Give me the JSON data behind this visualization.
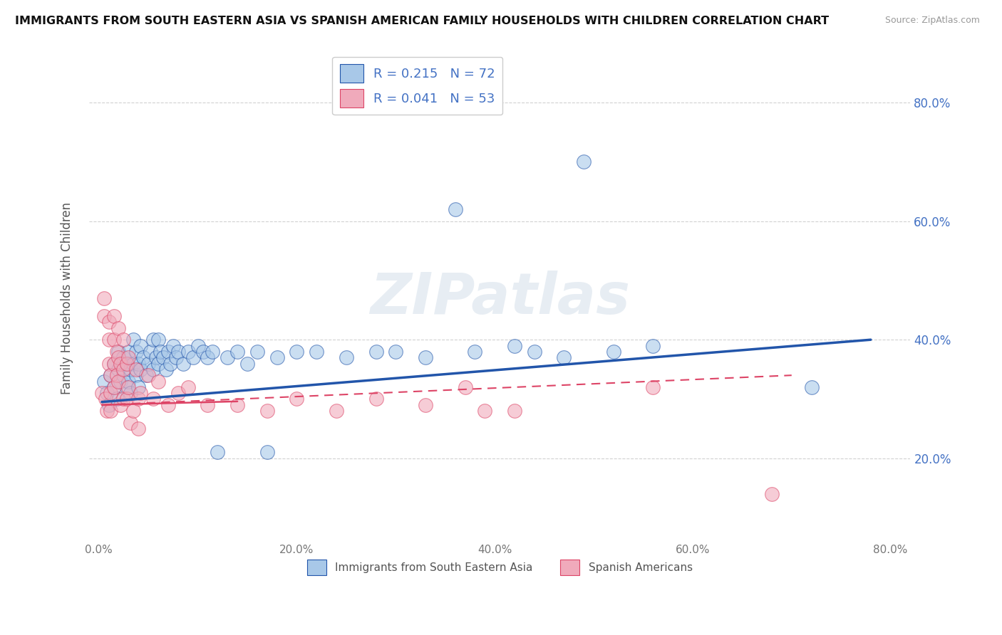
{
  "title": "IMMIGRANTS FROM SOUTH EASTERN ASIA VS SPANISH AMERICAN FAMILY HOUSEHOLDS WITH CHILDREN CORRELATION CHART",
  "source": "Source: ZipAtlas.com",
  "ylabel": "Family Households with Children",
  "xlim": [
    -0.01,
    0.82
  ],
  "ylim": [
    0.06,
    0.88
  ],
  "ytick_labels": [
    "20.0%",
    "40.0%",
    "60.0%",
    "80.0%"
  ],
  "ytick_values": [
    0.2,
    0.4,
    0.6,
    0.8
  ],
  "xtick_labels": [
    "0.0%",
    "20.0%",
    "40.0%",
    "60.0%",
    "80.0%"
  ],
  "xtick_values": [
    0.0,
    0.2,
    0.4,
    0.6,
    0.8
  ],
  "blue_R": 0.215,
  "blue_N": 72,
  "pink_R": 0.041,
  "pink_N": 53,
  "blue_color": "#a8c8e8",
  "blue_line_color": "#2255aa",
  "pink_color": "#f0aabb",
  "pink_line_color": "#dd4466",
  "pink_dashed_color": "#dd7788",
  "watermark": "ZIPatlas",
  "legend_label_blue": "Immigrants from South Eastern Asia",
  "legend_label_pink": "Spanish Americans",
  "blue_scatter_x": [
    0.005,
    0.008,
    0.01,
    0.012,
    0.015,
    0.015,
    0.018,
    0.02,
    0.02,
    0.022,
    0.025,
    0.025,
    0.028,
    0.028,
    0.03,
    0.03,
    0.032,
    0.032,
    0.035,
    0.035,
    0.038,
    0.038,
    0.04,
    0.04,
    0.042,
    0.042,
    0.045,
    0.048,
    0.05,
    0.052,
    0.055,
    0.055,
    0.058,
    0.06,
    0.06,
    0.062,
    0.065,
    0.068,
    0.07,
    0.072,
    0.075,
    0.078,
    0.08,
    0.085,
    0.09,
    0.095,
    0.1,
    0.105,
    0.11,
    0.115,
    0.12,
    0.13,
    0.14,
    0.15,
    0.16,
    0.17,
    0.18,
    0.2,
    0.22,
    0.25,
    0.28,
    0.3,
    0.33,
    0.36,
    0.38,
    0.42,
    0.44,
    0.47,
    0.49,
    0.52,
    0.56,
    0.72
  ],
  "blue_scatter_y": [
    0.33,
    0.31,
    0.29,
    0.34,
    0.32,
    0.36,
    0.3,
    0.35,
    0.38,
    0.33,
    0.34,
    0.37,
    0.32,
    0.36,
    0.33,
    0.38,
    0.35,
    0.31,
    0.36,
    0.4,
    0.34,
    0.38,
    0.36,
    0.32,
    0.35,
    0.39,
    0.37,
    0.34,
    0.36,
    0.38,
    0.35,
    0.4,
    0.37,
    0.36,
    0.4,
    0.38,
    0.37,
    0.35,
    0.38,
    0.36,
    0.39,
    0.37,
    0.38,
    0.36,
    0.38,
    0.37,
    0.39,
    0.38,
    0.37,
    0.38,
    0.21,
    0.37,
    0.38,
    0.36,
    0.38,
    0.21,
    0.37,
    0.38,
    0.38,
    0.37,
    0.38,
    0.38,
    0.37,
    0.62,
    0.38,
    0.39,
    0.38,
    0.37,
    0.7,
    0.38,
    0.39,
    0.32
  ],
  "pink_scatter_x": [
    0.003,
    0.005,
    0.005,
    0.007,
    0.008,
    0.01,
    0.01,
    0.01,
    0.012,
    0.012,
    0.012,
    0.015,
    0.015,
    0.015,
    0.015,
    0.018,
    0.018,
    0.02,
    0.02,
    0.02,
    0.022,
    0.022,
    0.025,
    0.025,
    0.025,
    0.028,
    0.028,
    0.03,
    0.03,
    0.032,
    0.035,
    0.038,
    0.04,
    0.04,
    0.042,
    0.05,
    0.055,
    0.06,
    0.07,
    0.08,
    0.09,
    0.11,
    0.14,
    0.17,
    0.2,
    0.24,
    0.28,
    0.33,
    0.37,
    0.39,
    0.42,
    0.56,
    0.68
  ],
  "pink_scatter_y": [
    0.31,
    0.47,
    0.44,
    0.3,
    0.28,
    0.43,
    0.4,
    0.36,
    0.34,
    0.31,
    0.28,
    0.44,
    0.4,
    0.36,
    0.32,
    0.38,
    0.34,
    0.42,
    0.37,
    0.33,
    0.36,
    0.29,
    0.4,
    0.35,
    0.3,
    0.36,
    0.3,
    0.37,
    0.32,
    0.26,
    0.28,
    0.35,
    0.3,
    0.25,
    0.31,
    0.34,
    0.3,
    0.33,
    0.29,
    0.31,
    0.32,
    0.29,
    0.29,
    0.28,
    0.3,
    0.28,
    0.3,
    0.29,
    0.32,
    0.28,
    0.28,
    0.32,
    0.14
  ],
  "background_color": "#ffffff",
  "grid_color": "#cccccc"
}
